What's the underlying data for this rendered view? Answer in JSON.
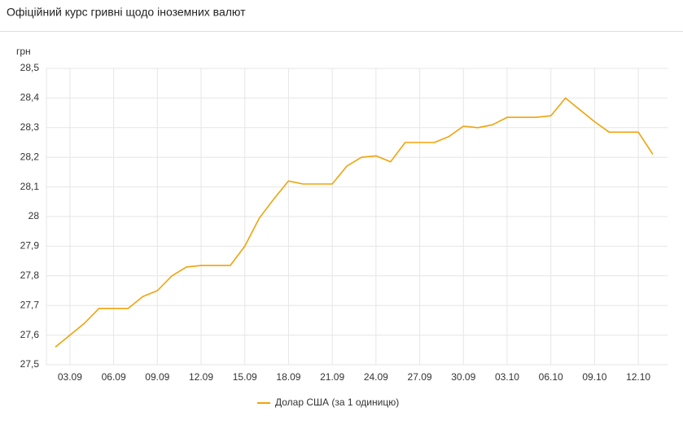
{
  "chart_data": {
    "type": "line",
    "title": "Офіційний курс гривні щодо іноземних валют",
    "y_label": "грн",
    "categories": [
      null,
      "03.09",
      null,
      null,
      "06.09",
      null,
      null,
      "09.09",
      null,
      null,
      "12.09",
      null,
      null,
      "15.09",
      null,
      null,
      "18.09",
      null,
      null,
      "21.09",
      null,
      null,
      "24.09",
      null,
      null,
      "27.09",
      null,
      null,
      "30.09",
      null,
      null,
      "03.10",
      null,
      null,
      "06.10",
      null,
      null,
      "09.10",
      null,
      null,
      "12.10",
      null
    ],
    "series": [
      {
        "name": "Долар США (за 1 одиницю)",
        "color": "#f0a30a",
        "values": [
          27.56,
          27.6,
          27.64,
          27.69,
          27.69,
          27.69,
          27.73,
          27.75,
          27.8,
          27.83,
          27.835,
          27.835,
          27.835,
          27.9,
          27.995,
          28.06,
          28.12,
          28.11,
          28.11,
          28.11,
          28.17,
          28.2,
          28.205,
          28.185,
          28.25,
          28.25,
          28.25,
          28.27,
          28.305,
          28.3,
          28.31,
          28.335,
          28.335,
          28.335,
          28.34,
          28.4,
          28.36,
          28.32,
          28.285,
          28.285,
          28.285,
          28.21
        ]
      }
    ],
    "ylim": [
      27.5,
      28.5
    ],
    "yticks": [
      {
        "value": 27.5,
        "label": "27,5"
      },
      {
        "value": 27.6,
        "label": "27,6"
      },
      {
        "value": 27.7,
        "label": "27,7"
      },
      {
        "value": 27.8,
        "label": "27,8"
      },
      {
        "value": 27.9,
        "label": "27,9"
      },
      28,
      {
        "value": 28.1,
        "label": "28,1"
      },
      {
        "value": 28.2,
        "label": "28,2"
      },
      {
        "value": 28.3,
        "label": "28,3"
      },
      {
        "value": 28.4,
        "label": "28,4"
      },
      {
        "value": 28.5,
        "label": "28,5"
      }
    ],
    "grid": true,
    "legend": "bottom"
  }
}
